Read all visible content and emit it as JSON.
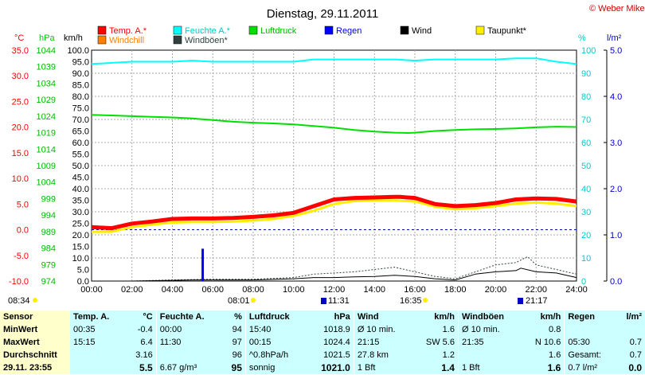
{
  "title": "Dienstag, 29.11.2011",
  "copyright": "© Weber Mike",
  "legend": [
    {
      "label": "Temp. A.*",
      "color": "#ff0000"
    },
    {
      "label": "Feuchte A.*",
      "color": "#00ffff"
    },
    {
      "label": "Luftdruck",
      "color": "#00e000"
    },
    {
      "label": "Regen",
      "color": "#0000ff"
    },
    {
      "label": "Wind",
      "color": "#000000"
    },
    {
      "label": "Taupunkt*",
      "color": "#ffee00"
    },
    {
      "label": "Windchill",
      "color": "#ff8000"
    },
    {
      "label": "Windböen*",
      "color": "#304040"
    }
  ],
  "axis_units": {
    "temp": "°C",
    "press": "hPa",
    "wind": "km/h",
    "hum": "%",
    "rain": "l/m²"
  },
  "sun_labels": {
    "sunrise_prev": "08:34",
    "sunrise": "08:01",
    "sunset": "16:35"
  },
  "minmax_labels": {
    "t1": "11:31",
    "t2": "21:17"
  },
  "chart_data": {
    "type": "line",
    "x_ticks": [
      "00:00",
      "02:00",
      "04:00",
      "06:00",
      "08:00",
      "10:00",
      "12:00",
      "14:00",
      "16:00",
      "18:00",
      "20:00",
      "22:00",
      "24:00"
    ],
    "temp_axis": {
      "label": "°C",
      "range": [
        -10,
        35
      ],
      "ticks": [
        "35.0",
        "30.0",
        "25.0",
        "20.0",
        "15.0",
        "10.0",
        "5.0",
        "0.0",
        "-5.0",
        "-10.0"
      ]
    },
    "press_axis": {
      "label": "hPa",
      "range": [
        974,
        1044
      ],
      "ticks": [
        "1044",
        "1039",
        "1034",
        "1029",
        "1024",
        "1019",
        "1014",
        "1009",
        "1004",
        "999",
        "994",
        "989",
        "984",
        "979",
        "974"
      ]
    },
    "wind_axis": {
      "label": "km/h",
      "range": [
        0,
        100
      ],
      "ticks": [
        "100.0",
        "95.0",
        "90.0",
        "85.0",
        "80.0",
        "75.0",
        "70.0",
        "65.0",
        "60.0",
        "55.0",
        "50.0",
        "45.0",
        "40.0",
        "35.0",
        "30.0",
        "25.0",
        "20.0",
        "15.0",
        "10.0",
        "5.0",
        "0.0"
      ]
    },
    "hum_axis": {
      "label": "%",
      "range": [
        0,
        100
      ],
      "ticks": [
        "100",
        "90",
        "80",
        "70",
        "60",
        "50",
        "40",
        "30",
        "20",
        "10",
        "0"
      ]
    },
    "rain_axis": {
      "label": "l/m²",
      "range": [
        0,
        5
      ],
      "ticks": [
        "5.0",
        "4.0",
        "3.0",
        "2.0",
        "1.0",
        "0.0"
      ]
    },
    "series": [
      {
        "name": "Temp. A.*",
        "color": "#ff0000",
        "x": [
          0,
          1,
          2,
          3,
          4,
          5,
          6,
          7,
          8,
          9,
          10,
          11,
          12,
          13,
          14,
          15,
          15.25,
          16,
          17,
          18,
          19,
          20,
          21,
          22,
          23,
          24
        ],
        "y": [
          0.5,
          0.3,
          1.2,
          1.6,
          2.1,
          2.2,
          2.2,
          2.3,
          2.5,
          2.8,
          3.3,
          4.6,
          5.9,
          6.2,
          6.3,
          6.4,
          6.4,
          6.2,
          5.0,
          4.6,
          4.8,
          5.2,
          5.9,
          6.1,
          6.0,
          5.5
        ]
      },
      {
        "name": "Taupunkt*",
        "color": "#ffee00",
        "x": [
          0,
          1,
          2,
          3,
          4,
          5,
          6,
          7,
          8,
          9,
          10,
          11,
          12,
          13,
          14,
          15,
          16,
          17,
          18,
          19,
          20,
          21,
          22,
          23,
          24
        ],
        "y": [
          -0.4,
          -0.4,
          0.5,
          1.0,
          1.4,
          1.5,
          1.5,
          1.6,
          1.8,
          2.1,
          2.7,
          3.7,
          5.0,
          5.6,
          5.7,
          5.7,
          5.5,
          4.5,
          4.0,
          4.2,
          4.6,
          5.1,
          5.3,
          5.1,
          4.6
        ]
      },
      {
        "name": "Feuchte A.*",
        "color": "#00ffff",
        "x": [
          0,
          1,
          2,
          3,
          4,
          5,
          6,
          7,
          8,
          9,
          10,
          11,
          12,
          13,
          14,
          15,
          16,
          17,
          18,
          19,
          20,
          21,
          22,
          23,
          24
        ],
        "y": [
          94,
          94.5,
          95,
          95,
          95,
          95.5,
          95,
          95,
          95,
          95,
          95,
          96,
          96,
          96,
          96,
          96,
          95.5,
          96,
          96,
          96,
          96,
          96.5,
          96.5,
          95,
          94
        ]
      },
      {
        "name": "Luftdruck",
        "color": "#00e000",
        "x": [
          0,
          1,
          2,
          3,
          4,
          5,
          6,
          7,
          8,
          9,
          10,
          11,
          12,
          13,
          14,
          15,
          15.67,
          16,
          17,
          18,
          19,
          20,
          21,
          22,
          23,
          24
        ],
        "y": [
          1024.4,
          1024.2,
          1024.0,
          1023.8,
          1023.6,
          1023.3,
          1022.8,
          1022.3,
          1022.0,
          1021.8,
          1021.5,
          1021.0,
          1020.5,
          1019.8,
          1019.3,
          1019.0,
          1018.9,
          1019.0,
          1019.5,
          1019.8,
          1020.0,
          1020.1,
          1020.3,
          1020.6,
          1020.8,
          1020.7
        ]
      },
      {
        "name": "Wind",
        "color": "#000000",
        "x": [
          0,
          2,
          4,
          5,
          6,
          8,
          10,
          11,
          12,
          13,
          14,
          15,
          16,
          17,
          18,
          19,
          20,
          21,
          21.25,
          22,
          23,
          24
        ],
        "y": [
          0,
          0,
          0.3,
          0.5,
          0.5,
          0.5,
          1.0,
          1.5,
          1.5,
          1.8,
          2.0,
          2.5,
          2.0,
          1.0,
          0.5,
          3.0,
          4.0,
          4.5,
          5.6,
          4.0,
          3.5,
          1.5
        ]
      },
      {
        "name": "Windböen*",
        "color": "#304040",
        "x": [
          0,
          2,
          4,
          6,
          8,
          10,
          11,
          12,
          13,
          14,
          15,
          16,
          17,
          18,
          19,
          20,
          21,
          21.58,
          22,
          23,
          24
        ],
        "y": [
          0,
          0,
          0.5,
          0.8,
          0.8,
          1.5,
          3.0,
          3.5,
          4.0,
          5.0,
          6.0,
          4.0,
          2.0,
          1.0,
          4.0,
          7.0,
          8.0,
          10.6,
          7.0,
          5.0,
          3.0
        ]
      },
      {
        "name": "Regen",
        "color": "#0000ff",
        "x": [
          5.5
        ],
        "y": [
          0.7
        ]
      }
    ]
  },
  "table": {
    "headers": [
      "Sensor",
      "Temp. A.",
      "°C",
      "Feuchte A.",
      "%",
      "Luftdruck",
      "hPa",
      "Wind",
      "km/h",
      "Windböen",
      "km/h",
      "Regen",
      "l/m²"
    ],
    "rows": [
      {
        "label": "MinWert",
        "cells": [
          "00:35",
          "-0.4",
          "00:00",
          "94",
          "15:40",
          "1018.9",
          "Ø 10 min.",
          "1.6",
          "Ø 10 min.",
          "0.8",
          "",
          ""
        ]
      },
      {
        "label": "MaxWert",
        "cells": [
          "15:15",
          "6.4",
          "11:30",
          "97",
          "00:15",
          "1024.4",
          "21:15",
          "SW 5.6",
          "21:35",
          "N 10.6",
          "05:30",
          "0.7"
        ]
      },
      {
        "label": "Durchschnitt",
        "cells": [
          "",
          "3.16",
          "",
          "96",
          "^0.8hPa/h",
          "1021.5",
          "27.8 km",
          "1.2",
          "",
          "1.6",
          "Gesamt:",
          "0.7"
        ]
      },
      {
        "label": "29.11. 23:55",
        "cells": [
          "",
          "5.5",
          "6.67 g/m³",
          "95",
          "sonnig",
          "1021.0",
          "1 Bft",
          "1.4",
          "1 Bft",
          "1.6",
          "0.7 l/m²",
          "0.0"
        ]
      }
    ]
  }
}
